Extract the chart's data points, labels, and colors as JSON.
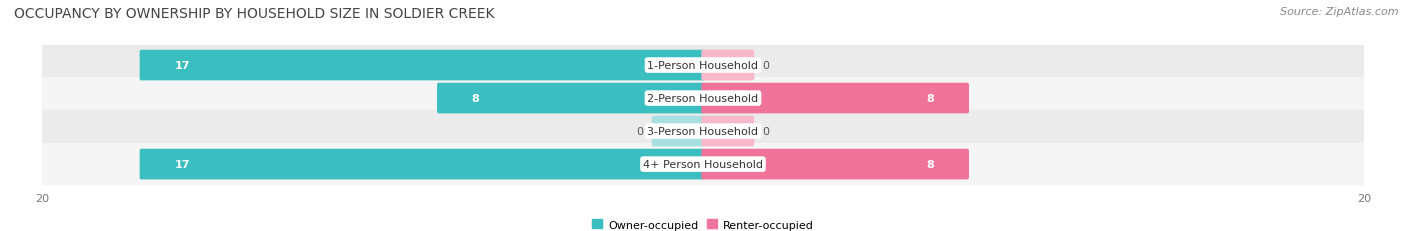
{
  "title": "OCCUPANCY BY OWNERSHIP BY HOUSEHOLD SIZE IN SOLDIER CREEK",
  "source": "Source: ZipAtlas.com",
  "categories": [
    "1-Person Household",
    "2-Person Household",
    "3-Person Household",
    "4+ Person Household"
  ],
  "owner_values": [
    17,
    8,
    0,
    17
  ],
  "renter_values": [
    0,
    8,
    0,
    8
  ],
  "owner_color": "#3bbec0",
  "renter_color": "#f0739a",
  "owner_color_zero": "#a8dfe0",
  "renter_color_zero": "#f8b8cc",
  "row_bg_colors": [
    "#ebebeb",
    "#f5f5f5",
    "#ebebeb",
    "#f5f5f5"
  ],
  "xlim": 20,
  "legend_owner": "Owner-occupied",
  "legend_renter": "Renter-occupied",
  "title_fontsize": 10,
  "source_fontsize": 8,
  "label_fontsize": 8,
  "value_fontsize": 8,
  "tick_fontsize": 8,
  "legend_fontsize": 8,
  "zero_stub": 1.5
}
